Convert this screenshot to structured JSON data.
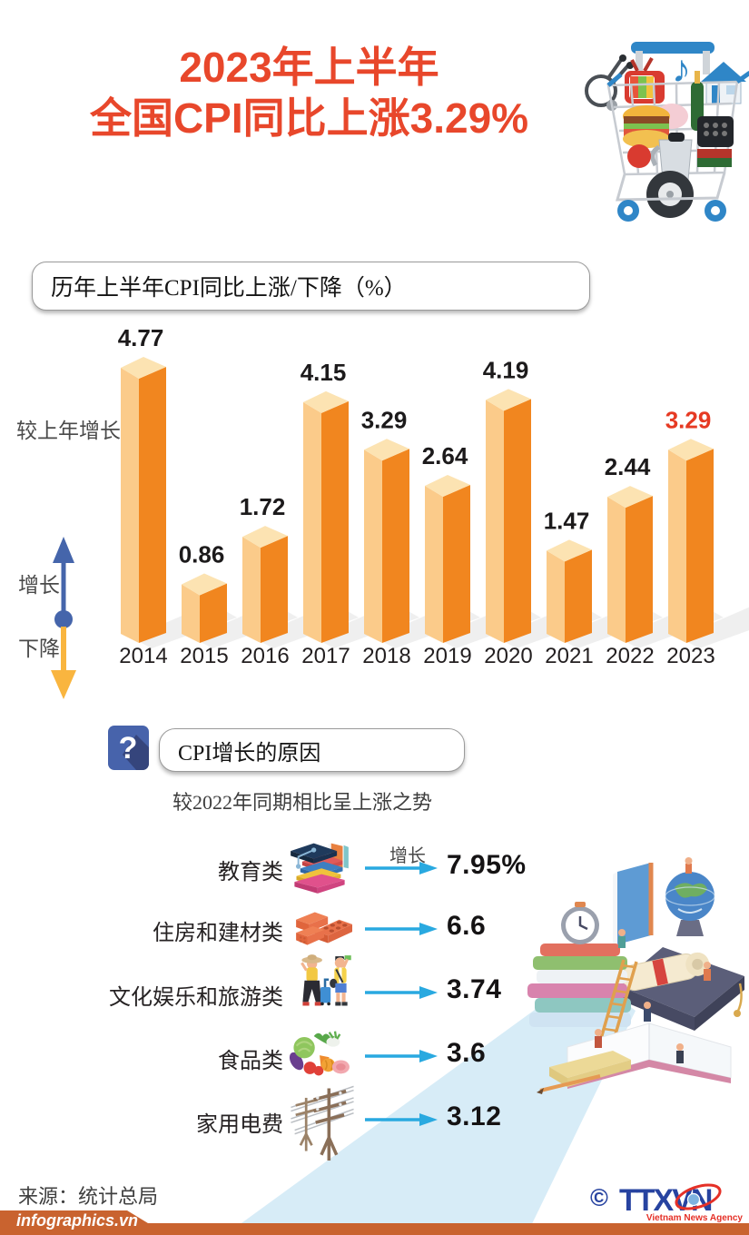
{
  "header": {
    "title_line1": "2023年上半年",
    "title_line2": "全国CPI同比上涨3.29%",
    "title_color": "#e8472b"
  },
  "chart": {
    "box_title": "历年上半年CPI同比上涨/下降（%）",
    "y_axis_label": "较上年增长率",
    "increase_label": "增长",
    "decrease_label": "下降"
  },
  "chart_data": [
    {
      "type": "bar",
      "title": "历年上半年CPI同比上涨/下降（%）",
      "categories": [
        "2014",
        "2015",
        "2016",
        "2017",
        "2018",
        "2019",
        "2020",
        "2021",
        "2022",
        "2023"
      ],
      "series": [
        {
          "name": "上半年CPI同比上涨/下降(%)",
          "values": [
            4.77,
            0.86,
            1.72,
            4.15,
            3.29,
            2.64,
            4.19,
            1.47,
            2.44,
            3.29
          ]
        }
      ],
      "ylim": [
        0,
        5
      ],
      "grid": false,
      "legend": "none",
      "bar_style": "3d-isometric",
      "highlight_category": "2023",
      "colors": {
        "front_light": "#fbcb8a",
        "front_dark": "#f1861f",
        "top": "#fce3b2",
        "label": "#1c1a1b",
        "highlight_label": "#e63a23",
        "shadow": "#dcdcdc"
      }
    },
    {
      "type": "table",
      "title": "CPI增长的原因",
      "subtitle": "较2022年同期相比呈上涨之势",
      "rows": [
        {
          "category": "教育类",
          "value": 7.95,
          "display": "7.95%"
        },
        {
          "category": "住房和建材类",
          "value": 6.6,
          "display": "6.6"
        },
        {
          "category": "文化娱乐和旅游类",
          "value": 3.74,
          "display": "3.74"
        },
        {
          "category": "食品类",
          "value": 3.6,
          "display": "3.6"
        },
        {
          "category": "家用电费",
          "value": 3.12,
          "display": "3.12"
        }
      ]
    }
  ],
  "reasons": {
    "question_mark": "?",
    "box_title": "CPI增长的原因",
    "subtitle": "较2022年同期相比呈上涨之势",
    "arrow_label": "增长",
    "arrow_color": "#29a9e0",
    "items": [
      {
        "label": "教育类",
        "value": "7.95%",
        "icon": "education-books-icon"
      },
      {
        "label": "住房和建材类",
        "value": "6.6",
        "icon": "bricks-icon"
      },
      {
        "label": "文化娱乐和旅游类",
        "value": "3.74",
        "icon": "travelers-icon"
      },
      {
        "label": "食品类",
        "value": "3.6",
        "icon": "vegetables-icon"
      },
      {
        "label": "家用电费",
        "value": "3.12",
        "icon": "power-lines-icon"
      }
    ]
  },
  "footer": {
    "source": "来源：统计总局",
    "site": "infographics.vn",
    "bar_color": "#c9632f",
    "logo": {
      "copyright": "©",
      "text": "TTXVN",
      "subtext": "Vietnam News Agency",
      "blue": "#2743a0",
      "red": "#e53027"
    }
  }
}
